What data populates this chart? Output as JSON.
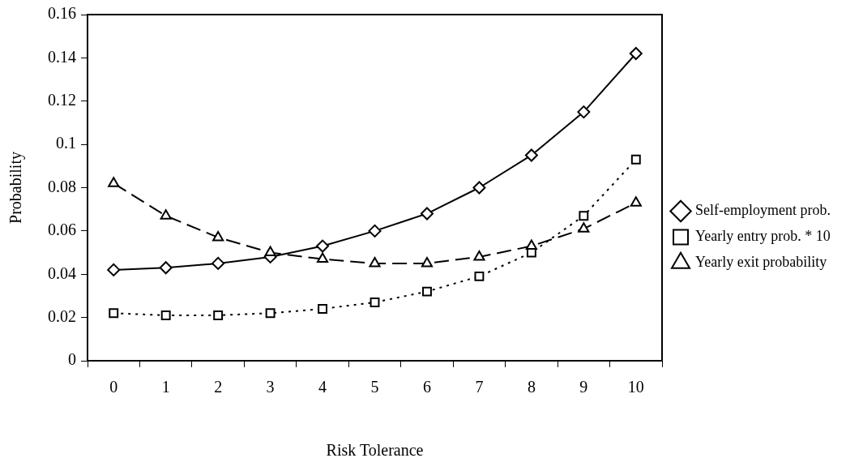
{
  "chart_data": {
    "type": "line",
    "xlabel": "Risk Tolerance",
    "ylabel": "Probability",
    "categories": [
      "0",
      "1",
      "2",
      "3",
      "4",
      "5",
      "6",
      "7",
      "8",
      "9",
      "10"
    ],
    "series": [
      {
        "name": "Self-employment prob.",
        "color": "#000000",
        "marker": "diamond",
        "line_style": "solid",
        "values": [
          0.042,
          0.043,
          0.045,
          0.048,
          0.053,
          0.06,
          0.068,
          0.08,
          0.095,
          0.115,
          0.142
        ]
      },
      {
        "name": "Yearly entry prob. * 10",
        "color": "#000000",
        "marker": "square",
        "line_style": "dotted",
        "values": [
          0.022,
          0.021,
          0.021,
          0.022,
          0.024,
          0.027,
          0.032,
          0.039,
          0.05,
          0.067,
          0.093
        ]
      },
      {
        "name": "Yearly exit probability",
        "color": "#000000",
        "marker": "triangle",
        "line_style": "dashed",
        "values": [
          0.082,
          0.067,
          0.057,
          0.05,
          0.047,
          0.045,
          0.045,
          0.048,
          0.053,
          0.061,
          0.073
        ]
      }
    ],
    "ylim": [
      0,
      0.16
    ],
    "yticks": [
      0,
      0.02,
      0.04,
      0.06,
      0.08,
      0.1,
      0.12,
      0.14,
      0.16
    ],
    "grid": false,
    "legend": "right"
  }
}
